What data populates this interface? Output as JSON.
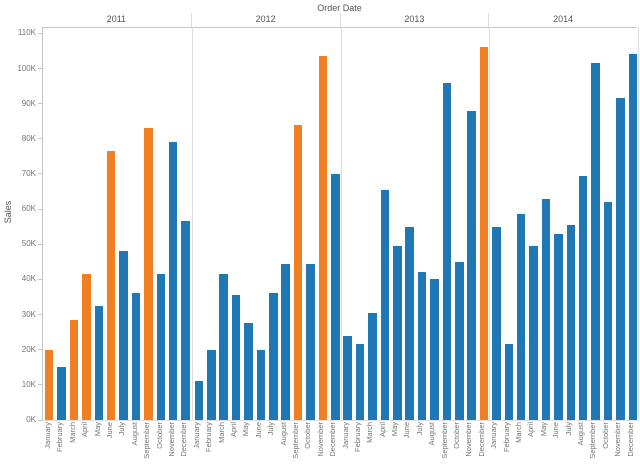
{
  "title": "Order Date",
  "y_axis": {
    "label": "Sales",
    "tick_labels": [
      "0K",
      "10K",
      "20K",
      "30K",
      "40K",
      "50K",
      "60K",
      "70K",
      "80K",
      "90K",
      "100K",
      "110K"
    ],
    "unit": "K"
  },
  "colors": {
    "bar_default": "#1f77b4",
    "bar_highlight": "#f28022",
    "axis_line": "#c6c6c6",
    "pane_divider": "#dcdcdc",
    "text_dark": "#555555",
    "text_grey": "#767676"
  },
  "chart_data": {
    "type": "bar",
    "title": "Order Date",
    "xlabel": "Order Date",
    "ylabel": "Sales",
    "ylim": [
      0,
      111.8
    ],
    "grid": "none",
    "legend": "none",
    "unit": "thousands (K)",
    "categories": [
      "January",
      "February",
      "March",
      "April",
      "May",
      "June",
      "July",
      "August",
      "September",
      "October",
      "November",
      "December"
    ],
    "series": [
      {
        "name": "2011",
        "values_k": [
          20,
          15,
          28.5,
          41.5,
          32.5,
          76.5,
          48,
          36,
          83,
          41.5,
          79,
          56.5
        ],
        "highlight_indices": [
          0,
          2,
          3,
          5,
          8
        ]
      },
      {
        "name": "2012",
        "values_k": [
          11,
          20,
          41.5,
          35.5,
          27.5,
          20,
          36,
          44.5,
          84,
          44.5,
          103.5,
          70
        ],
        "highlight_indices": [
          8,
          10
        ]
      },
      {
        "name": "2013",
        "values_k": [
          24,
          21.5,
          30.5,
          65.5,
          49.5,
          55,
          42,
          40,
          96,
          45,
          88,
          106
        ],
        "highlight_indices": [
          11
        ]
      },
      {
        "name": "2014",
        "values_k": [
          55,
          21.5,
          58.5,
          49.5,
          63,
          53,
          55.5,
          69.5,
          101.5,
          62,
          91.5,
          104
        ],
        "highlight_indices": []
      }
    ]
  }
}
